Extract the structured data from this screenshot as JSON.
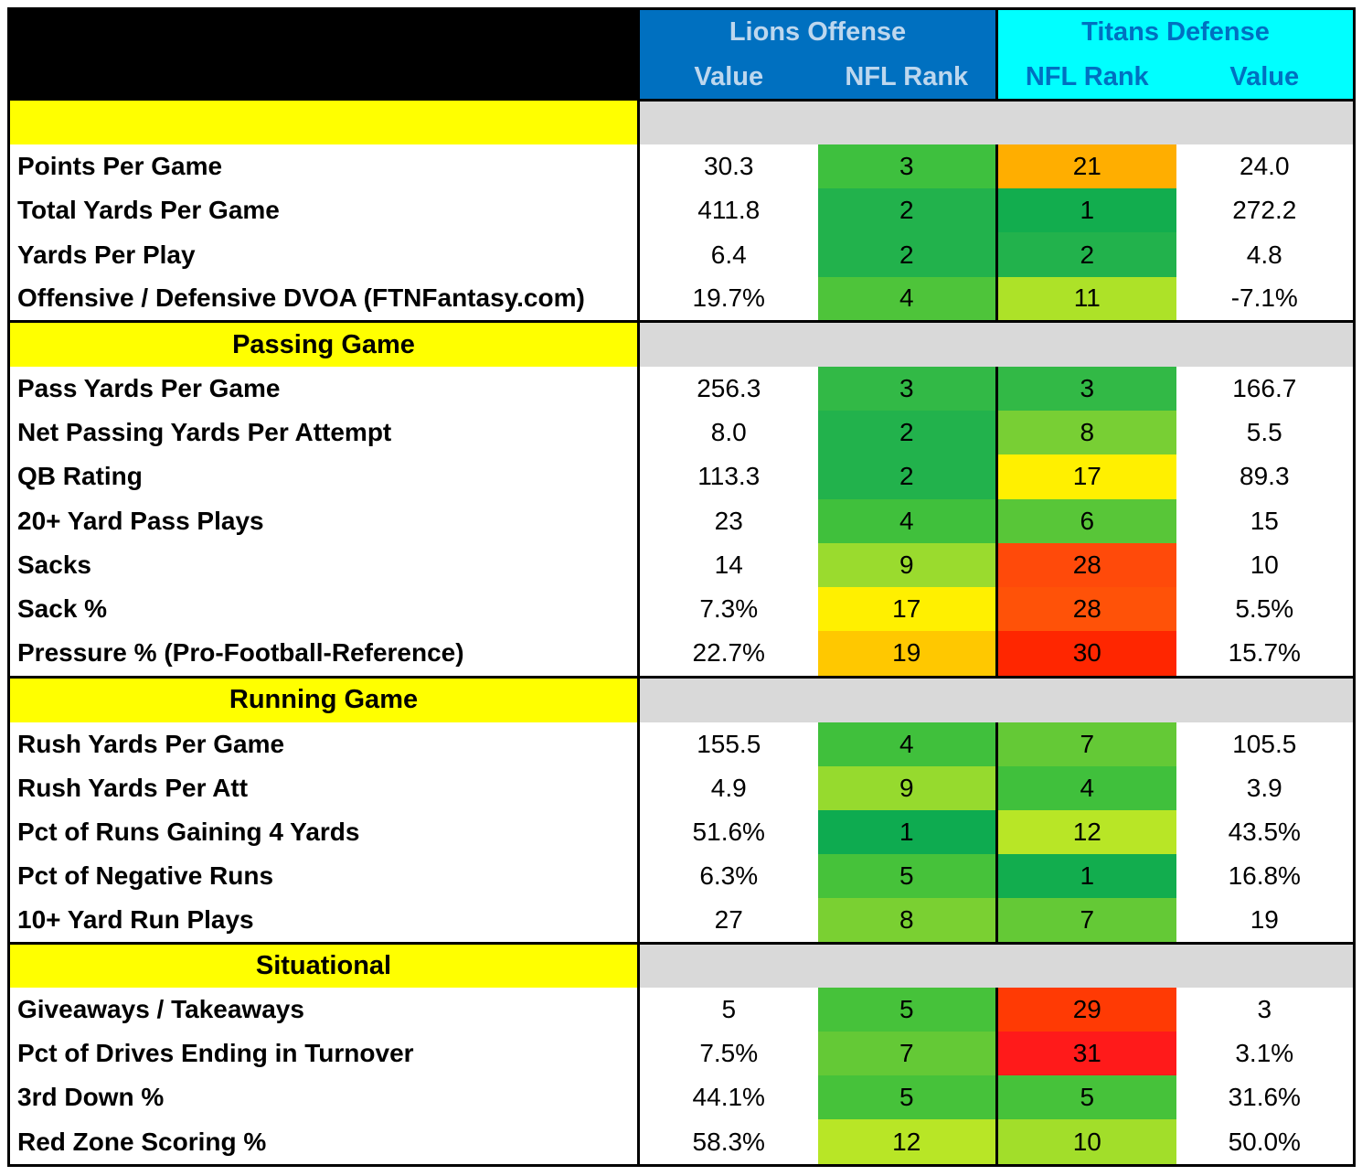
{
  "header": {
    "lions_group": "Lions Offense",
    "titans_group": "Titans Defense",
    "lions_value": "Value",
    "lions_rank": "NFL Rank",
    "titans_rank": "NFL Rank",
    "titans_value": "Value"
  },
  "sections": [
    {
      "title": "",
      "rows": [
        {
          "label": "Points Per Game",
          "lions_value": "30.3",
          "lions_rank": "3",
          "titans_rank": "21",
          "titans_value": "24.0",
          "lions_color": "#3EC03E",
          "titans_color": "#FFAE00"
        },
        {
          "label": "Total Yards Per Game",
          "lions_value": "411.8",
          "lions_rank": "2",
          "titans_rank": "1",
          "titans_value": "272.2",
          "lions_color": "#22B24C",
          "titans_color": "#12AD4E"
        },
        {
          "label": "Yards Per Play",
          "lions_value": "6.4",
          "lions_rank": "2",
          "titans_rank": "2",
          "titans_value": "4.8",
          "lions_color": "#22B24C",
          "titans_color": "#22B24C"
        },
        {
          "label": "Offensive / Defensive DVOA (FTNFantasy.com)",
          "lions_value": "19.7%",
          "lions_rank": "4",
          "titans_rank": "11",
          "titans_value": "-7.1%",
          "lions_color": "#4EC43A",
          "titans_color": "#ADE228"
        }
      ]
    },
    {
      "title": "Passing Game",
      "rows": [
        {
          "label": "Pass Yards Per Game",
          "lions_value": "256.3",
          "lions_rank": "3",
          "titans_rank": "3",
          "titans_value": "166.7",
          "lions_color": "#32B946",
          "titans_color": "#32B946"
        },
        {
          "label": "Net Passing Yards Per Attempt",
          "lions_value": "8.0",
          "lions_rank": "2",
          "titans_rank": "8",
          "titans_value": "5.5",
          "lions_color": "#22B24C",
          "titans_color": "#78CF34"
        },
        {
          "label": "QB Rating",
          "lions_value": "113.3",
          "lions_rank": "2",
          "titans_rank": "17",
          "titans_value": "89.3",
          "lions_color": "#22B24C",
          "titans_color": "#FFF000"
        },
        {
          "label": "20+ Yard Pass Plays",
          "lions_value": "23",
          "lions_rank": "4",
          "titans_rank": "6",
          "titans_value": "15",
          "lions_color": "#40C03C",
          "titans_color": "#58C638"
        },
        {
          "label": "Sacks",
          "lions_value": "14",
          "lions_rank": "9",
          "titans_rank": "28",
          "titans_value": "10",
          "lions_color": "#9ADB2E",
          "titans_color": "#FF4A0A"
        },
        {
          "label": "Sack %",
          "lions_value": "7.3%",
          "lions_rank": "17",
          "titans_rank": "28",
          "titans_value": "5.5%",
          "lions_color": "#FFF000",
          "titans_color": "#FF5208"
        },
        {
          "label": "Pressure % (Pro-Football-Reference)",
          "lions_value": "22.7%",
          "lions_rank": "19",
          "titans_rank": "30",
          "titans_value": "15.7%",
          "lions_color": "#FFC800",
          "titans_color": "#FF2600"
        }
      ]
    },
    {
      "title": "Running Game",
      "rows": [
        {
          "label": "Rush Yards Per Game",
          "lions_value": "155.5",
          "lions_rank": "4",
          "titans_rank": "7",
          "titans_value": "105.5",
          "lions_color": "#40C03C",
          "titans_color": "#64C936"
        },
        {
          "label": "Rush Yards Per Att",
          "lions_value": "4.9",
          "lions_rank": "9",
          "titans_rank": "4",
          "titans_value": "3.9",
          "lions_color": "#96DA2E",
          "titans_color": "#40C03C"
        },
        {
          "label": "Pct of Runs Gaining 4 Yards",
          "lions_value": "51.6%",
          "lions_rank": "1",
          "titans_rank": "12",
          "titans_value": "43.5%",
          "lions_color": "#0EAB50",
          "titans_color": "#B8E626"
        },
        {
          "label": "Pct of Negative Runs",
          "lions_value": "6.3%",
          "lions_rank": "5",
          "titans_rank": "1",
          "titans_value": "16.8%",
          "lions_color": "#46C23A",
          "titans_color": "#12AD4E"
        },
        {
          "label": "10+ Yard Run Plays",
          "lions_value": "27",
          "lions_rank": "8",
          "titans_rank": "7",
          "titans_value": "19",
          "lions_color": "#7AD032",
          "titans_color": "#64C936"
        }
      ]
    },
    {
      "title": "Situational",
      "rows": [
        {
          "label": "Giveaways / Takeaways",
          "lions_value": "5",
          "lions_rank": "5",
          "titans_rank": "29",
          "titans_value": "3",
          "lions_color": "#46C23A",
          "titans_color": "#FF3A04"
        },
        {
          "label": "Pct of Drives Ending in Turnover",
          "lions_value": "7.5%",
          "lions_rank": "7",
          "titans_rank": "31",
          "titans_value": "3.1%",
          "lions_color": "#64C936",
          "titans_color": "#FF1A1A"
        },
        {
          "label": "3rd Down %",
          "lions_value": "44.1%",
          "lions_rank": "5",
          "titans_rank": "5",
          "titans_value": "31.6%",
          "lions_color": "#46C23A",
          "titans_color": "#46C23A"
        },
        {
          "label": "Red Zone Scoring %",
          "lions_value": "58.3%",
          "lions_rank": "12",
          "titans_rank": "10",
          "titans_value": "50.0%",
          "lions_color": "#B8E626",
          "titans_color": "#A2DE2A"
        }
      ]
    }
  ]
}
